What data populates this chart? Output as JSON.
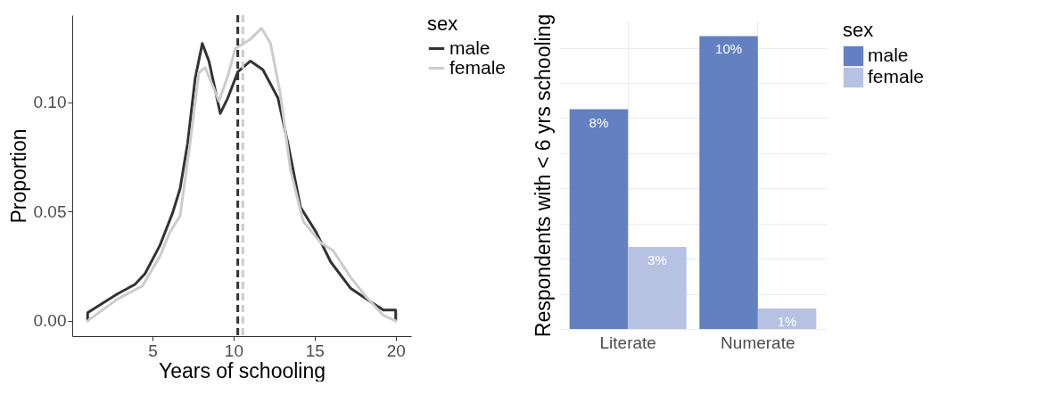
{
  "chart_data": [
    {
      "type": "line",
      "xlabel": "Years of schooling",
      "ylabel": "Proportion",
      "legend_title": "sex",
      "legend": "right",
      "line_style": "solid",
      "xlim": [
        0.05,
        20.95
      ],
      "ylim": [
        -0.007,
        0.14
      ],
      "xticks": [
        5,
        10,
        15,
        20
      ],
      "yticks": [
        {
          "value": 0,
          "label": "0.00"
        },
        {
          "value": 0.05,
          "label": "0.05"
        },
        {
          "value": 0.1,
          "label": "0.10"
        }
      ],
      "series": [
        {
          "name": "male",
          "color": "#333333",
          "x": [
            1,
            1,
            2.83,
            3.92,
            4.54,
            5.46,
            6.24,
            6.7,
            7.17,
            7.63,
            8.07,
            8.48,
            9.18,
            9.64,
            10.26,
            11.04,
            11.81,
            12.74,
            13.36,
            14.13,
            15.06,
            15.99,
            17.23,
            18.47,
            19.24,
            20,
            20
          ],
          "values": [
            0,
            0.0037,
            0.0123,
            0.0167,
            0.0216,
            0.0346,
            0.0494,
            0.0605,
            0.0815,
            0.111,
            0.127,
            0.119,
            0.095,
            0.102,
            0.114,
            0.119,
            0.115,
            0.102,
            0.081,
            0.052,
            0.041,
            0.027,
            0.0148,
            0.0086,
            0.0049,
            0.0049,
            0
          ]
        },
        {
          "name": "female",
          "color": "#cccccc",
          "x": [
            1,
            2.83,
            4.38,
            5.46,
            6.08,
            6.7,
            7.32,
            7.86,
            8.25,
            9.1,
            9.64,
            10.11,
            11.04,
            11.73,
            12.28,
            12.89,
            13.51,
            14.29,
            15.37,
            16.15,
            17.23,
            18.16,
            19.24,
            20
          ],
          "values": [
            0,
            0.0099,
            0.016,
            0.0296,
            0.0407,
            0.048,
            0.0815,
            0.1136,
            0.116,
            0.1006,
            0.112,
            0.1247,
            0.129,
            0.134,
            0.127,
            0.1037,
            0.069,
            0.0457,
            0.0358,
            0.0321,
            0.0198,
            0.0111,
            0.0025,
            0
          ]
        }
      ],
      "ref_lines": [
        {
          "axis": "x",
          "value": 10.26,
          "color": "#333333",
          "line_style": "dashed"
        },
        {
          "axis": "x",
          "value": 10.57,
          "color": "#cccccc",
          "line_style": "dashed"
        }
      ]
    },
    {
      "type": "bar",
      "ylabel": "Respondents with < 6 yrs schooling",
      "legend_title": "sex",
      "legend": "right",
      "grid": true,
      "tick_labels": "x",
      "categories": [
        "Literate",
        "Numerate"
      ],
      "ylim": [
        0,
        10.5
      ],
      "yticks": [
        {
          "value": 0,
          "label": null
        },
        {
          "value": 1.2,
          "label": null
        },
        {
          "value": 2.4,
          "label": null
        },
        {
          "value": 3.6,
          "label": null
        },
        {
          "value": 4.8,
          "label": null
        },
        {
          "value": 6,
          "label": null
        },
        {
          "value": 7.2,
          "label": null
        },
        {
          "value": 8.4,
          "label": null
        },
        {
          "value": 9.6,
          "label": null
        }
      ],
      "series": [
        {
          "name": "male",
          "color": "#6381c1",
          "values": [
            7.5,
            10
          ],
          "value_labels": [
            "8%",
            "10%"
          ]
        },
        {
          "name": "female",
          "color": "#b7c2e2",
          "values": [
            2.8,
            0.7
          ],
          "value_labels": [
            "3%",
            "1%"
          ]
        }
      ]
    }
  ]
}
